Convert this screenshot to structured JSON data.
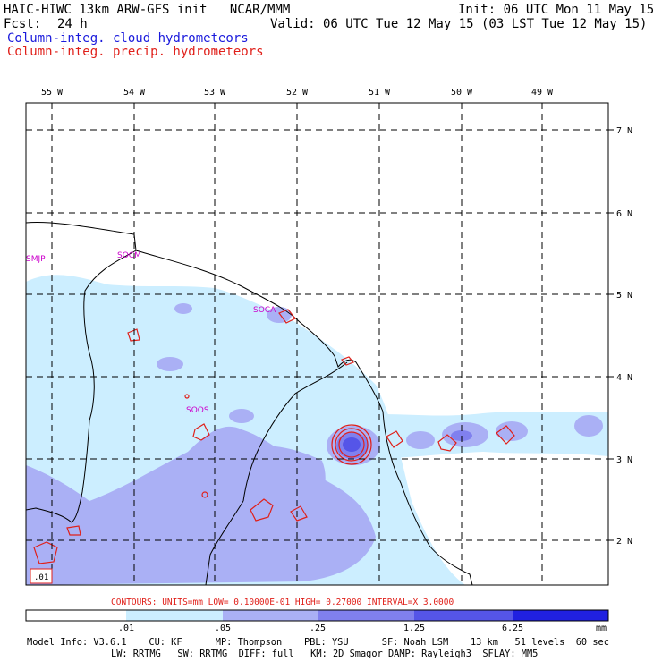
{
  "header": {
    "model_title": "HAIC-HIWC 13km ARW-GFS init   NCAR/MMM",
    "init": "Init: 06 UTC Mon 11 May 15",
    "fcst_label": "Fcst:",
    "fcst_value": "24 h",
    "valid": "Valid: 06 UTC Tue 12 May 15 (03 LST Tue 12 May 15)",
    "legend_cloud": "Column-integ. cloud hydrometeors",
    "legend_precip": "Column-integ. precip. hydrometeors"
  },
  "map": {
    "lon_labels": [
      "55 W",
      "54 W",
      "53 W",
      "52 W",
      "51 W",
      "50 W",
      "49 W"
    ],
    "lat_labels": [
      "7 N",
      "6 N",
      "5 N",
      "4 N",
      "3 N",
      "2 N"
    ],
    "stations": [
      "SMJP",
      "SOCM",
      "SOCA",
      "SOOS"
    ],
    "corner_box": ".01"
  },
  "contours": {
    "line": "CONTOURS:  UNITS=mm  LOW= 0.10000E-01  HIGH= 0.27000      INTERVAL=X  3.0000"
  },
  "colorbar": {
    "ticks": [
      ".01",
      ".05",
      ".25",
      "1.25",
      "6.25"
    ],
    "units": "mm",
    "colors": [
      "#ffffff",
      "#cceeff",
      "#aab0f5",
      "#8080ee",
      "#5555e8",
      "#2020e0"
    ]
  },
  "model_info": {
    "line1": "Model Info: V3.6.1    CU: KF      MP: Thompson    PBL: YSU      SF: Noah LSM    13 km   51 levels  60 sec",
    "line2": "LW: RRTMG   SW: RRTMG  DIFF: full   KM: 2D Smagor DAMP: Rayleigh3  SFLAY: MM5"
  }
}
